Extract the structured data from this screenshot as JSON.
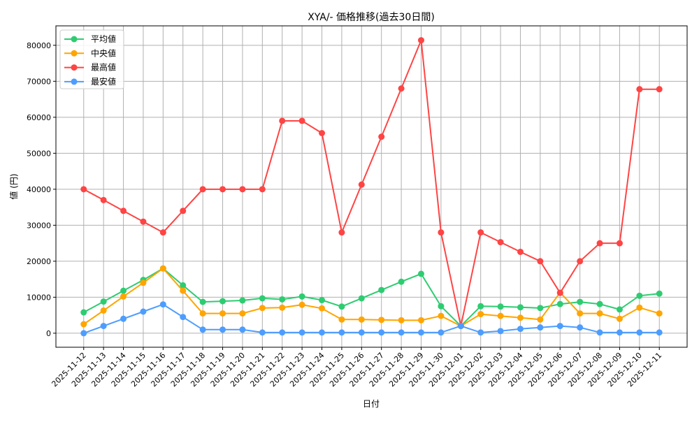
{
  "chart_data": {
    "type": "line",
    "title": "XYA/- 価格推移(過去30日間)",
    "xlabel": "日付",
    "ylabel": "値 (円)",
    "ylim": [
      -3900,
      85400
    ],
    "yticks": [
      0,
      10000,
      20000,
      30000,
      40000,
      50000,
      60000,
      70000,
      80000
    ],
    "grid": true,
    "legend_position": "top-left",
    "x": [
      "2025-11-12",
      "2025-11-13",
      "2025-11-14",
      "2025-11-15",
      "2025-11-16",
      "2025-11-17",
      "2025-11-18",
      "2025-11-19",
      "2025-11-20",
      "2025-11-21",
      "2025-11-22",
      "2025-11-23",
      "2025-11-24",
      "2025-11-25",
      "2025-11-26",
      "2025-11-27",
      "2025-11-28",
      "2025-11-29",
      "2025-11-30",
      "2025-12-01",
      "2025-12-02",
      "2025-12-03",
      "2025-12-04",
      "2025-12-05",
      "2025-12-06",
      "2025-12-07",
      "2025-12-08",
      "2025-12-09",
      "2025-12-10",
      "2025-12-11"
    ],
    "series": [
      {
        "name": "平均値",
        "color": "#2ecc71",
        "values": [
          5800,
          8800,
          11800,
          14800,
          18000,
          13300,
          8700,
          8900,
          9100,
          9700,
          9400,
          10200,
          9200,
          7400,
          9700,
          12000,
          14300,
          16500,
          7500,
          2000,
          7500,
          7400,
          7200,
          7000,
          8100,
          8700,
          8100,
          6600,
          10400,
          11000
        ]
      },
      {
        "name": "中央値",
        "color": "#ffa500",
        "values": [
          2500,
          6300,
          10200,
          14000,
          18000,
          11800,
          5500,
          5500,
          5500,
          7000,
          7100,
          7900,
          6900,
          3800,
          3800,
          3700,
          3600,
          3600,
          4800,
          2000,
          5300,
          4800,
          4300,
          3800,
          11300,
          5500,
          5500,
          4000,
          7100,
          5500
        ]
      },
      {
        "name": "最高値",
        "color": "#ff4444",
        "values": [
          40000,
          37000,
          34000,
          31000,
          28000,
          34000,
          40000,
          40000,
          40000,
          40000,
          59000,
          59000,
          55600,
          28000,
          41300,
          54600,
          68000,
          81400,
          28000,
          2000,
          28000,
          25300,
          22600,
          20000,
          11200,
          20000,
          25000,
          25000,
          67800,
          67800
        ]
      },
      {
        "name": "最安値",
        "color": "#4d9dff",
        "values": [
          0,
          2000,
          4000,
          6000,
          8000,
          4500,
          1000,
          1000,
          1000,
          200,
          200,
          200,
          200,
          200,
          200,
          200,
          200,
          200,
          200,
          2000,
          200,
          600,
          1200,
          1600,
          2000,
          1600,
          200,
          200,
          200,
          200
        ]
      }
    ]
  }
}
